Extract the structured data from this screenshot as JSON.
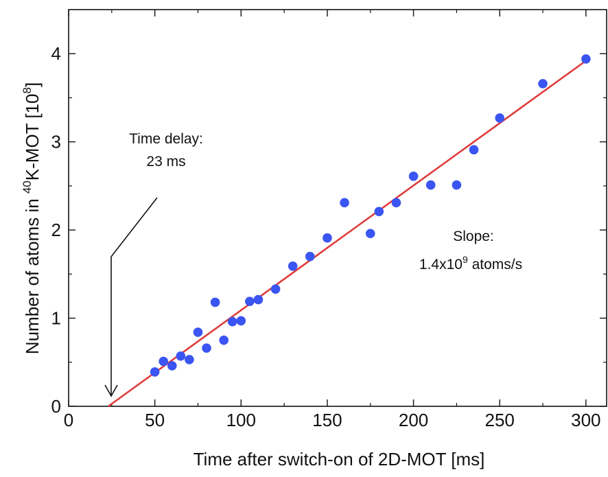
{
  "chart_data": {
    "type": "scatter",
    "xlabel": "Time after switch-on of 2D-MOT [ms]",
    "ylabel": {
      "prefix": "Number of atoms in ",
      "sup1": "40",
      "mid": "K-MOT [10",
      "sup2": "8",
      "suffix": "]"
    },
    "xlim": [
      0,
      312
    ],
    "ylim": [
      0,
      4.5
    ],
    "x_ticks": [
      0,
      50,
      100,
      150,
      200,
      250,
      300
    ],
    "y_ticks": [
      0,
      1,
      2,
      3,
      4
    ],
    "grid": false,
    "series": [
      {
        "points": [
          [
            50,
            0.39
          ],
          [
            55,
            0.51
          ],
          [
            60,
            0.46
          ],
          [
            65,
            0.57
          ],
          [
            70,
            0.53
          ],
          [
            75,
            0.84
          ],
          [
            80,
            0.66
          ],
          [
            85,
            1.18
          ],
          [
            90,
            0.75
          ],
          [
            95,
            0.96
          ],
          [
            100,
            0.97
          ],
          [
            105,
            1.19
          ],
          [
            110,
            1.21
          ],
          [
            120,
            1.33
          ],
          [
            130,
            1.59
          ],
          [
            140,
            1.7
          ],
          [
            150,
            1.91
          ],
          [
            160,
            2.31
          ],
          [
            175,
            1.96
          ],
          [
            180,
            2.21
          ],
          [
            190,
            2.31
          ],
          [
            200,
            2.61
          ],
          [
            210,
            2.51
          ],
          [
            225,
            2.51
          ],
          [
            235,
            2.91
          ],
          [
            250,
            3.27
          ],
          [
            275,
            3.66
          ],
          [
            300,
            3.94
          ]
        ],
        "color": "#3a55f2"
      },
      {
        "type": "line",
        "x": [
          23,
          300
        ],
        "y": [
          0,
          3.92
        ],
        "color": "#e03a3a"
      }
    ],
    "annotations": {
      "delay_line1": "Time delay:",
      "delay_line2": "23 ms",
      "slope_line1": "Slope:",
      "slope_base": "1.4x10",
      "slope_sup": "9",
      "slope_unit": " atoms/s"
    }
  }
}
